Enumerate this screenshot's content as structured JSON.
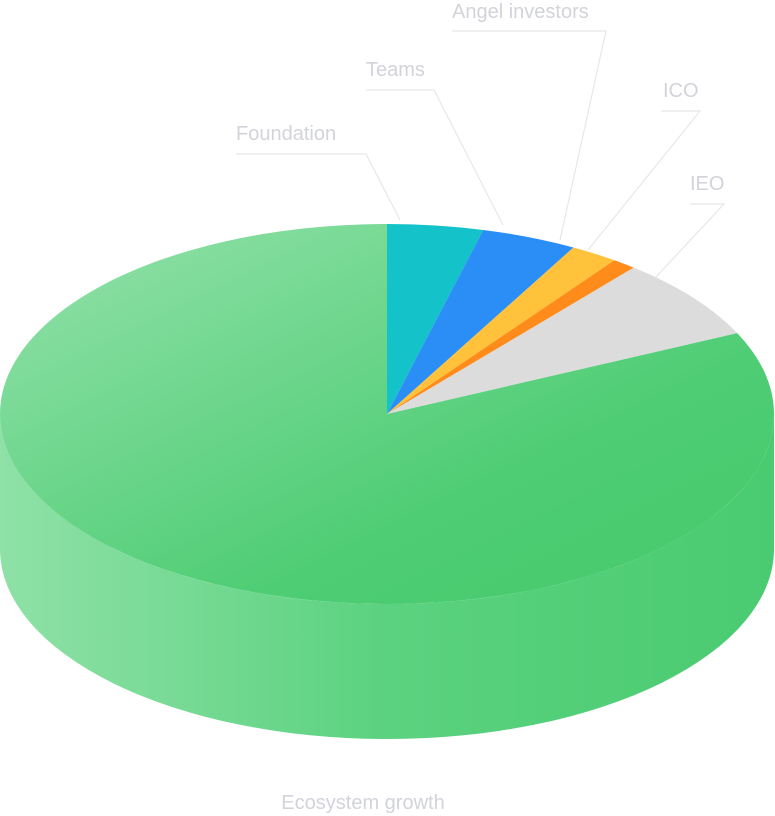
{
  "chart_data": {
    "type": "pie",
    "style": "3d",
    "slices": [
      {
        "label": "Foundation",
        "value": 4,
        "color": "#14c3c9"
      },
      {
        "label": "Teams",
        "value": 4,
        "color": "#2b8ef7"
      },
      {
        "label": "Angel investors",
        "value": 2,
        "color": "#ffc23a"
      },
      {
        "label": "ICO",
        "value": 1,
        "color": "#ff8c1a"
      },
      {
        "label": "IEO",
        "value": 7,
        "color": "#dcdcdc"
      },
      {
        "label": "Ecosystem growth",
        "value": 82,
        "color": "#4fcd75"
      }
    ]
  }
}
